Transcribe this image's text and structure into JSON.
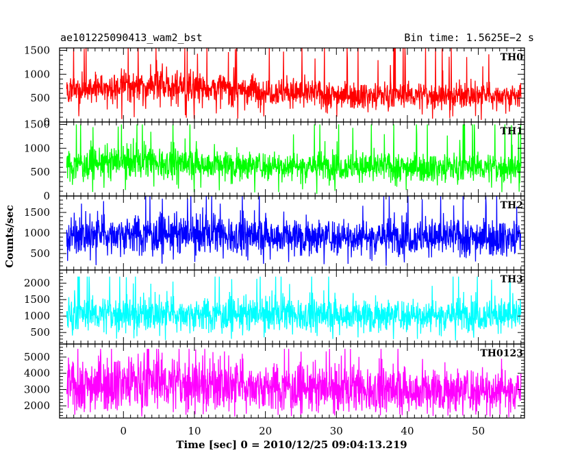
{
  "header": {
    "title": "ae101225090413_wam2_bst",
    "bin_time": "Bin time: 1.5625E−2 s"
  },
  "chart_data": {
    "type": "line",
    "xlabel": "Time [sec] 0 = 2010/12/25 09:04:13.219",
    "ylabel": "Counts/sec",
    "xlim": [
      -9,
      56.5
    ],
    "x_range": [
      -8,
      56
    ],
    "x_ticks": [
      0,
      10,
      20,
      30,
      40,
      50
    ],
    "bin_time_s": 0.015625,
    "panels": [
      {
        "name": "TH0",
        "color": "#ff0000",
        "ylim": [
          0,
          1550
        ],
        "y_ticks": [
          0,
          500,
          1000,
          1500
        ],
        "profile": [
          [
            -8,
            600
          ],
          [
            0,
            780
          ],
          [
            4,
            760
          ],
          [
            15,
            700
          ],
          [
            30,
            570
          ],
          [
            45,
            560
          ],
          [
            56,
            560
          ]
        ],
        "min": 30,
        "max": 1550
      },
      {
        "name": "TH1",
        "color": "#00ff00",
        "ylim": [
          0,
          1550
        ],
        "y_ticks": [
          0,
          500,
          1000,
          1500
        ],
        "profile": [
          [
            -8,
            650
          ],
          [
            0,
            720
          ],
          [
            5,
            700
          ],
          [
            20,
            640
          ],
          [
            40,
            610
          ],
          [
            56,
            600
          ]
        ],
        "min": 40,
        "max": 1500
      },
      {
        "name": "TH2",
        "color": "#0000ff",
        "ylim": [
          100,
          1900
        ],
        "y_ticks": [
          500,
          1000,
          1500
        ],
        "profile": [
          [
            -8,
            930
          ],
          [
            0,
            990
          ],
          [
            10,
            960
          ],
          [
            30,
            920
          ],
          [
            56,
            900
          ]
        ],
        "min": 200,
        "max": 1900
      },
      {
        "name": "TH3",
        "color": "#00ffff",
        "ylim": [
          150,
          2400
        ],
        "y_ticks": [
          500,
          1000,
          1500,
          2000
        ],
        "profile": [
          [
            -8,
            1050
          ],
          [
            0,
            1080
          ],
          [
            20,
            1050
          ],
          [
            56,
            1040
          ]
        ],
        "min": 250,
        "max": 2200
      },
      {
        "name": "TH0123",
        "color": "#ff00ff",
        "ylim": [
          1250,
          5800
        ],
        "y_ticks": [
          2000,
          3000,
          4000,
          5000
        ],
        "profile": [
          [
            -8,
            3200
          ],
          [
            0,
            3500
          ],
          [
            4,
            3450
          ],
          [
            15,
            3300
          ],
          [
            30,
            3000
          ],
          [
            45,
            3000
          ],
          [
            56,
            3000
          ]
        ],
        "min": 1300,
        "max": 5500
      }
    ]
  }
}
